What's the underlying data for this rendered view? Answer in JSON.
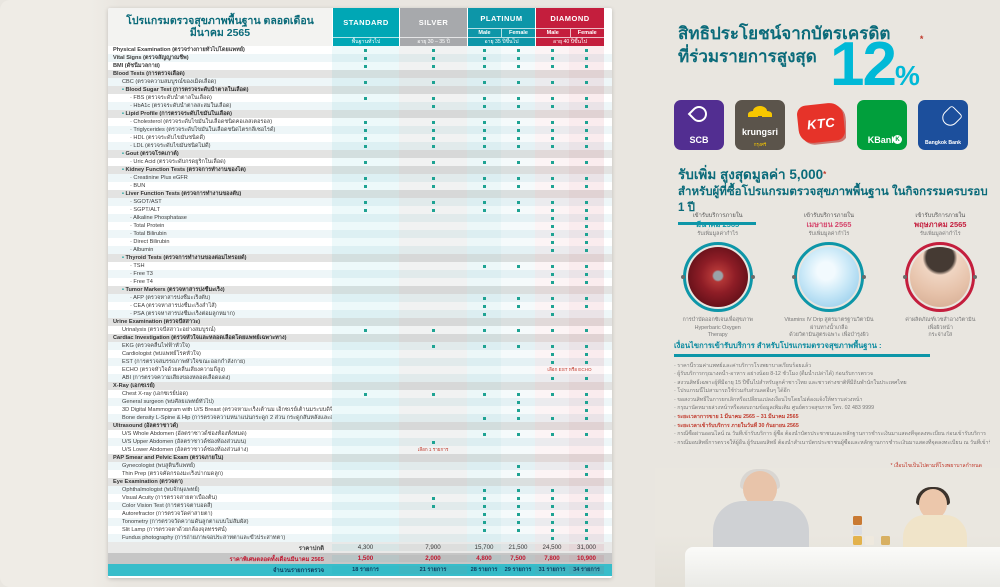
{
  "table": {
    "title": "โปรแกรมตรวจสุขภาพพื้นฐาน ตลอดเดือนมีนาคม 2565",
    "columns": [
      {
        "label": "STANDARD",
        "age": "พื้นฐานทั่วไป",
        "bg": "#00a7b5",
        "genders": []
      },
      {
        "label": "SILVER",
        "age": "อายุ 30 – 35 ปี",
        "bg": "#a7a9ac",
        "genders": []
      },
      {
        "label": "PLATINUM",
        "age": "อายุ 35 ปีขึ้นไป",
        "bg": "#0d96a8",
        "genders": [
          "Male",
          "Female"
        ]
      },
      {
        "label": "DIAMOND",
        "age": "อายุ 40 ปีขึ้นไป",
        "bg": "#c41e3d",
        "genders": [
          "Male",
          "Female"
        ]
      }
    ],
    "rows": [
      {
        "t": "Physical Examination (ตรวจร่างกายทั่วไปโดยแพทย์)",
        "i": 0,
        "d": [
          1,
          1,
          1,
          1,
          1,
          1
        ]
      },
      {
        "t": "Vital Signs (ตรวจสัญญาณชีพ)",
        "i": 0,
        "d": [
          1,
          1,
          1,
          1,
          1,
          1
        ]
      },
      {
        "t": "BMI (ดัชนีมวลกาย)",
        "i": 0,
        "d": [
          1,
          1,
          1,
          1,
          1,
          1
        ]
      },
      {
        "t": "Blood Tests (การตรวจเลือด)",
        "i": 0,
        "sec": true
      },
      {
        "t": "CBC (ตรวจความสมบูรณ์ของเม็ดเลือด)",
        "i": 1,
        "d": [
          1,
          1,
          1,
          1,
          1,
          1
        ]
      },
      {
        "t": "Blood Sugar Test (การตรวจระดับน้ำตาลในเลือด)",
        "i": 1,
        "sec": true,
        "b": true
      },
      {
        "t": "FBS (ตรวจระดับน้ำตาลในเลือด)",
        "i": 2,
        "d": [
          1,
          1,
          1,
          1,
          1,
          1
        ]
      },
      {
        "t": "HbA1c (ตรวจระดับน้ำตาลสะสมในเลือด)",
        "i": 2,
        "d": [
          0,
          1,
          1,
          1,
          1,
          1
        ]
      },
      {
        "t": "Lipid Profile (การตรวจระดับไขมันในเลือด)",
        "i": 1,
        "sec": true,
        "b": true
      },
      {
        "t": "Cholesterol (ตรวจระดับไขมันในเลือดชนิดคอเลสเตอรอล)",
        "i": 2,
        "d": [
          1,
          1,
          1,
          1,
          1,
          1
        ]
      },
      {
        "t": "Triglycerides (ตรวจระดับไขมันในเลือดชนิดไตรกลีเซอไรด์)",
        "i": 2,
        "d": [
          1,
          1,
          1,
          1,
          1,
          1
        ]
      },
      {
        "t": "HDL (ตรวจระดับไขมันชนิดดี)",
        "i": 2,
        "d": [
          1,
          1,
          1,
          1,
          1,
          1
        ]
      },
      {
        "t": "LDL (ตรวจระดับไขมันชนิดไม่ดี)",
        "i": 2,
        "d": [
          1,
          1,
          1,
          1,
          1,
          1
        ]
      },
      {
        "t": "Gout (ตรวจโรคเกาต์)",
        "i": 1,
        "sec": true,
        "b": true
      },
      {
        "t": "Uric Acid (ตรวจระดับกรดยูริกในเลือด)",
        "i": 2,
        "d": [
          1,
          1,
          1,
          1,
          1,
          1
        ]
      },
      {
        "t": "Kidney Function Tests (ตรวจการทำงานของไต)",
        "i": 1,
        "sec": true,
        "b": true
      },
      {
        "t": "Creatinine Plus eGFR",
        "i": 2,
        "d": [
          1,
          1,
          1,
          1,
          1,
          1
        ]
      },
      {
        "t": "BUN",
        "i": 2,
        "d": [
          1,
          1,
          1,
          1,
          1,
          1
        ]
      },
      {
        "t": "Liver Function Tests (ตรวจการทำงานของตับ)",
        "i": 1,
        "sec": true,
        "b": true
      },
      {
        "t": "SGOT/AST",
        "i": 2,
        "d": [
          1,
          1,
          1,
          1,
          1,
          1
        ]
      },
      {
        "t": "SGPT/ALT",
        "i": 2,
        "d": [
          1,
          1,
          1,
          1,
          1,
          1
        ]
      },
      {
        "t": "Alkaline Phosphatase",
        "i": 2,
        "d": [
          0,
          0,
          0,
          0,
          1,
          1
        ]
      },
      {
        "t": "Total Protein",
        "i": 2,
        "d": [
          0,
          0,
          0,
          0,
          1,
          1
        ]
      },
      {
        "t": "Total Bilirubin",
        "i": 2,
        "d": [
          0,
          0,
          0,
          0,
          1,
          1
        ]
      },
      {
        "t": "Direct Bilirubin",
        "i": 2,
        "d": [
          0,
          0,
          0,
          0,
          1,
          1
        ]
      },
      {
        "t": "Albumin",
        "i": 2,
        "d": [
          0,
          0,
          0,
          0,
          1,
          1
        ]
      },
      {
        "t": "Thyroid Tests (ตรวจการทำงานของต่อมไทรอยด์)",
        "i": 1,
        "sec": true,
        "b": true
      },
      {
        "t": "TSH",
        "i": 2,
        "d": [
          0,
          0,
          1,
          1,
          1,
          1
        ]
      },
      {
        "t": "Free T3",
        "i": 2,
        "d": [
          0,
          0,
          0,
          0,
          1,
          1
        ]
      },
      {
        "t": "Free T4",
        "i": 2,
        "d": [
          0,
          0,
          0,
          0,
          1,
          1
        ]
      },
      {
        "t": "Tumor Markers (ตรวจหาสารบ่งชี้มะเร็ง)",
        "i": 1,
        "sec": true,
        "b": true
      },
      {
        "t": "AFP (ตรวจหาสารบ่งชี้มะเร็งตับ)",
        "i": 2,
        "d": [
          0,
          0,
          1,
          1,
          1,
          1
        ]
      },
      {
        "t": "CEA (ตรวจหาสารบ่งชี้มะเร็งลำไส้)",
        "i": 2,
        "d": [
          0,
          0,
          1,
          1,
          1,
          1
        ]
      },
      {
        "t": "PSA (ตรวจหาสารบ่งชี้มะเร็งต่อมลูกหมาก)",
        "i": 2,
        "d": [
          0,
          0,
          1,
          0,
          1,
          0
        ]
      },
      {
        "t": "Urine Examination (ตรวจปัสสาวะ)",
        "i": 0,
        "sec": true
      },
      {
        "t": "Urinalysis (ตรวจปัสสาวะอย่างสมบูรณ์)",
        "i": 1,
        "d": [
          1,
          1,
          1,
          1,
          1,
          1
        ]
      },
      {
        "t": "Cardiac Investigation (ตรวจหัวใจและหลอดเลือดโดยแพทย์เฉพาะทาง)",
        "i": 0,
        "sec": true
      },
      {
        "t": "EKG (ตรวจคลื่นไฟฟ้าหัวใจ)",
        "i": 1,
        "d": [
          0,
          1,
          1,
          1,
          1,
          1
        ]
      },
      {
        "t": "Cardiologist (พบแพทย์โรคหัวใจ)",
        "i": 1,
        "d": [
          0,
          0,
          0,
          0,
          1,
          1
        ]
      },
      {
        "t": "EST (การตรวจสมรรถภาพหัวใจขณะออกกำลังกาย)",
        "i": 1,
        "d": [
          0,
          0,
          0,
          0,
          1,
          1
        ]
      },
      {
        "t": "ECHO (ตรวจหัวใจด้วยคลื่นเสียงความถี่สูง)",
        "i": 1,
        "d": [
          0,
          0,
          0,
          0,
          0,
          0
        ],
        "note": "เลือก EST หรือ ECHO",
        "noteCol": "diamond"
      },
      {
        "t": "ABI (การตรวจความเสี่ยงของหลอดเลือดแดง)",
        "i": 1,
        "d": [
          0,
          0,
          0,
          0,
          1,
          1
        ]
      },
      {
        "t": "X-Ray (เอกซเรย์)",
        "i": 0,
        "sec": true
      },
      {
        "t": "Chest X-ray (เอกซเรย์ปอด)",
        "i": 1,
        "d": [
          1,
          1,
          1,
          1,
          1,
          1
        ]
      },
      {
        "t": "General surgeon (พบศัลยแพทย์ทั่วไป)",
        "i": 1,
        "d": [
          0,
          0,
          0,
          1,
          0,
          1
        ]
      },
      {
        "t": "3D Digital Mammogram with U/S Breast (ตรวจหามะเร็งเต้านม เอ็กซเรย์เต้านมระบบดิจิตอล 3 มิติ และอัลตราซาวด์เต้านม)",
        "i": 1,
        "d": [
          0,
          0,
          0,
          1,
          0,
          1
        ]
      },
      {
        "t": "Bone density L-Spine & Hip (การตรวจความหนาแน่นกระดูก 2 ส่วน กระดูกสันหลังและสะโพก)",
        "i": 1,
        "d": [
          0,
          0,
          1,
          1,
          1,
          1
        ]
      },
      {
        "t": "Ultrasound (อัลตราซาวด์)",
        "i": 0,
        "sec": true
      },
      {
        "t": "U/S Whole Abdomen (อัลตราซาวด์ช่องท้องทั้งหมด)",
        "i": 1,
        "d": [
          0,
          0,
          1,
          1,
          1,
          1
        ]
      },
      {
        "t": "U/S Upper Abdomen (อัลตราซาวด์ช่องท้องส่วนบน)",
        "i": 1,
        "d": [
          0,
          1,
          0,
          0,
          0,
          0
        ]
      },
      {
        "t": "U/S Lower Abdomen (อัลตราซาวด์ช่องท้องส่วนล่าง)",
        "i": 1,
        "d": [
          0,
          0,
          0,
          0,
          0,
          0
        ],
        "note": "เลือก 1 รายการ",
        "noteCol": "silver"
      },
      {
        "t": "PAP Smear and Pelvic Exam (ตรวจภายใน)",
        "i": 0,
        "sec": true
      },
      {
        "t": "Gynecologist (พบสูตินรีแพทย์)",
        "i": 1,
        "d": [
          0,
          0,
          0,
          1,
          0,
          1
        ]
      },
      {
        "t": "Thin Prep (ตรวจคัดกรองมะเร็งปากมดลูก)",
        "i": 1,
        "d": [
          0,
          0,
          0,
          1,
          0,
          1
        ]
      },
      {
        "t": "Eye Examination (ตรวจตา)",
        "i": 0,
        "sec": true
      },
      {
        "t": "Ophthalmologist (พบจักษุแพทย์)",
        "i": 1,
        "d": [
          0,
          0,
          1,
          1,
          1,
          1
        ]
      },
      {
        "t": "Visual Acuity (การตรวจสายตาเบื้องต้น)",
        "i": 1,
        "d": [
          0,
          1,
          1,
          1,
          1,
          1
        ]
      },
      {
        "t": "Color Vision Test (การตรวจตาบอดสี)",
        "i": 1,
        "d": [
          0,
          1,
          1,
          1,
          1,
          1
        ]
      },
      {
        "t": "Autorefractor (การตรวจวัดค่าสายตา)",
        "i": 1,
        "d": [
          0,
          0,
          1,
          1,
          1,
          1
        ]
      },
      {
        "t": "Tonometry (การตรวจวัดความดันลูกตาแบบไม่สัมผัส)",
        "i": 1,
        "d": [
          0,
          0,
          1,
          1,
          1,
          1
        ]
      },
      {
        "t": "Slit Lamp (การตรวจตาด้วยกล้องจุลทรรศน์)",
        "i": 1,
        "d": [
          0,
          0,
          1,
          1,
          1,
          1
        ]
      },
      {
        "t": "Fundus photography (การถ่ายภาพจอประสาทตาและขั้วประสาทตา)",
        "i": 1,
        "d": [
          0,
          0,
          0,
          0,
          1,
          1
        ]
      }
    ],
    "footer": {
      "normal_price_label": "ราคาปกติ",
      "normal_prices": [
        "4,300",
        "7,900",
        "15,700",
        "21,500",
        "24,500",
        "31,000"
      ],
      "special_price_label": "ราคาพิเศษตลอดทั้งเดือนมีนาคม 2565",
      "special_prices": [
        "1,500",
        "2,000",
        "4,800",
        "7,500",
        "7,800",
        "10,900"
      ],
      "count_label": "จำนวนรายการตรวจ",
      "counts": [
        "18 รายการ",
        "21 รายการ",
        "28 รายการ",
        "29 รายการ",
        "31 รายการ",
        "34 รายการ"
      ]
    }
  },
  "credit": {
    "heading_line1": "สิทธิประโยชน์จากบัตรเครดิต",
    "heading_line2": "ที่ร่วมรายการสูงสุด",
    "percent": "12",
    "percent_sign": "%",
    "asterisk": "*",
    "banks": [
      {
        "name": "SCB",
        "label": "SCB",
        "bg": "#522e91",
        "icon": "scb"
      },
      {
        "name": "Krungsri",
        "label": "krungsri",
        "sub": "กรุงศรี",
        "bg": "#5b544b",
        "icon": "krungsri"
      },
      {
        "name": "KTC",
        "label": "KTC",
        "bg": "transparent",
        "icon": "ktc"
      },
      {
        "name": "KBank",
        "label": "KBank",
        "bg": "#019f3c",
        "icon": "kbank"
      },
      {
        "name": "Bangkok Bank",
        "label": "Bangkok Bank",
        "bg": "#1c4f9c",
        "icon": "bbl"
      }
    ]
  },
  "gift": {
    "title": "รับเพิ่ม สูงสุดมูลค่า 5,000",
    "title_asterisk": "*",
    "subtitle": "สำหรับผู้ที่ซื้อโปรแกรมตรวจสุขภาพพื้นฐาน ในกิจกรรมครบรอบ 1 ปี",
    "offers": [
      {
        "period_label": "เข้ารับบริการภายใน",
        "month": "มีนาคม 2565",
        "month_color": "#0d96a8",
        "bonus": "รับเพิ่มมูลค่ากำไร",
        "ring": "#0d96a8",
        "img": "oxygen",
        "caption": [
          "การบำบัดออกซิเจนเพื่อสุขภาพ",
          "Hyperbaric Oxygen",
          "Therapy"
        ]
      },
      {
        "period_label": "เข้ารับบริการภายใน",
        "month": "เมษายน 2565",
        "month_color": "#d6486e",
        "bonus": "รับเพิ่มมูลค่ากำไร",
        "ring": "#0d96a8",
        "img": "vitamin",
        "caption": [
          "Vitamins IV Drip สูตรมาตรฐานวิตามิน",
          "ผ่านทางน้ำเกลือ",
          "ด้วยวิตามินสูตรเฉพาะ เพื่อบำรุงผิว"
        ]
      },
      {
        "period_label": "เข้ารับบริการภายใน",
        "month": "พฤษภาคม 2565",
        "month_color": "#c41e3d",
        "bonus": "รับเพิ่มมูลค่ากำไร",
        "ring": "#c41e3d",
        "img": "face",
        "caption": [
          "ค่าผลิตภัณฑ์เวชสำอางวิตามิน",
          "เพื่อผิวหน้า",
          "กระจ่างใส"
        ]
      }
    ]
  },
  "terms": {
    "title": "เงื่อนไขการเข้ารับบริการ สำหรับโปรแกรมตรวจสุขภาพพื้นฐาน :",
    "items": [
      {
        "text": "ราคานี้รวมค่าแพทย์และค่าบริการโรงพยาบาลเรียบร้อยแล้ว"
      },
      {
        "text": "ผู้รับบริการกรุณางดน้ำ-อาหาร อย่างน้อย 8-12 ชั่วโมง (ดื่มน้ำเปล่าได้) ก่อนรับการตรวจ"
      },
      {
        "text": "สงวนสิทธิ์เฉพาะผู้ที่มีอายุ 15 ปีขึ้นไปสำหรับลูกค้าชาวไทย และชาวต่างชาติที่มีถิ่นพำนักในประเทศไทย"
      },
      {
        "text": "โปรแกรมนี้ไม่สามารถใช้ร่วมกับส่วนลดอื่นๆ ได้อีก"
      },
      {
        "text": "ขอสงวนสิทธิ์ในการยกเลิกหรือเปลี่ยนแปลงเงื่อนไขโดยไม่ต้องแจ้งให้ทราบล่วงหน้า"
      },
      {
        "text": "กรุณานัดหมายล่วงหน้าหรือสอบถามข้อมูลเพิ่มเติม ศูนย์ตรวจสุขภาพ โทร. 02 483 9999"
      },
      {
        "text": "ระยะเวลาการขาย 1 มีนาคม 2565 – 31 มีนาคม 2565",
        "red": true
      },
      {
        "text": "ระยะเวลาเข้ารับบริการ ภายในวันที่ 30 กันยายน 2565",
        "red": true
      },
      {
        "text": "กรณีซื้อผ่านออนไลน์ ณ วันที่เข้ารับบริการ ผู้ซื้อ ต้องนำบัตรประชาชนและหลักฐานการชำระเงินมาแสดงที่จุดลงทะเบียน ก่อนเข้ารับบริการ"
      },
      {
        "text": "กรณีมอบสิทธิ์การตรวจให้ผู้อื่น ผู้รับมอบสิทธิ์ ต้องนำสำเนาบัตรประชาชนผู้ซื้อและหลักฐานการชำระเงินมาแสดงที่จุดลงทะเบียน ณ วันที่เข้ารับบริการ"
      }
    ],
    "footnote": "* เงื่อนไขเป็นไปตามที่โรงพยาบาลกำหนด"
  }
}
